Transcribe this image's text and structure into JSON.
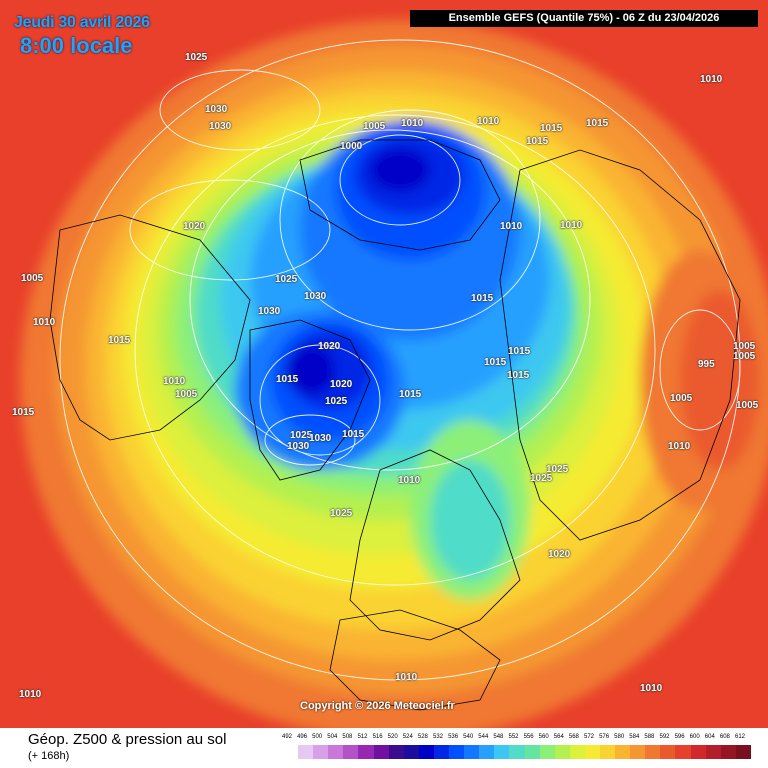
{
  "header": {
    "date": "Jeudi 30 avril 2026",
    "time": "8:00 locale",
    "model_run": "Ensemble GEFS  (Quantile 75%) - 06 Z du 23/04/2026"
  },
  "copyright": "Copyright © 2026 Meteociel.fr",
  "footer": {
    "title": "Géop. Z500 & pression au sol",
    "subtitle": "(+ 168h)"
  },
  "legend": {
    "values": [
      "492",
      "496",
      "500",
      "504",
      "508",
      "512",
      "516",
      "520",
      "524",
      "528",
      "532",
      "536",
      "540",
      "544",
      "548",
      "552",
      "556",
      "560",
      "564",
      "568",
      "572",
      "576",
      "580",
      "584",
      "588",
      "592",
      "596",
      "600",
      "604",
      "608",
      "612"
    ],
    "colors": [
      "#ffffff",
      "#e6c8f0",
      "#d8a0e6",
      "#c878d8",
      "#b450c8",
      "#9628b4",
      "#7010a0",
      "#3c0c90",
      "#1c0ca0",
      "#0000c8",
      "#0028e6",
      "#0050ff",
      "#1478ff",
      "#28a0ff",
      "#3cc8f0",
      "#50dcc8",
      "#64e6a0",
      "#8cf078",
      "#b4f050",
      "#dcf03c",
      "#f5eb32",
      "#fad232",
      "#fab432",
      "#f59632",
      "#f07832",
      "#eb5a2d",
      "#e6412d",
      "#d2282d",
      "#b41e28",
      "#961423",
      "#78101e"
    ]
  },
  "pressure_labels": [
    "1025",
    "1030",
    "1030",
    "1010",
    "1020",
    "1005",
    "1010",
    "1015",
    "1015",
    "1015",
    "1015",
    "1010",
    "1005",
    "1005",
    "1000",
    "1010",
    "1010",
    "1015",
    "1015",
    "1010",
    "1010",
    "1025",
    "1030",
    "1030",
    "1020",
    "1015",
    "1020",
    "1025",
    "1025",
    "1030",
    "1015",
    "1015",
    "1015",
    "1015",
    "1015",
    "1010",
    "1005",
    "1005",
    "995",
    "1005",
    "1005",
    "1010",
    "1025",
    "1025",
    "1030",
    "1025",
    "1020",
    "1010",
    "1010",
    "1010"
  ],
  "icons": {
    "map": "northern-hemisphere-polar-map",
    "legend": "color-scale"
  }
}
